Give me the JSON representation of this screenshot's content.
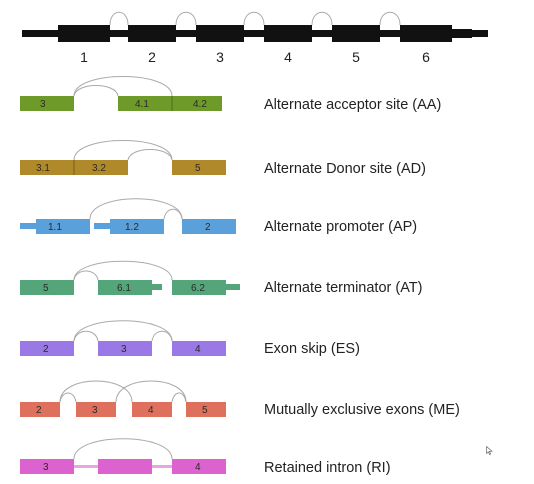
{
  "top_gene": {
    "exon_labels": [
      "1",
      "2",
      "3",
      "4",
      "5",
      "6"
    ]
  },
  "events": [
    {
      "id": "aa",
      "label": "Alternate acceptor site (AA)",
      "color": "#6e9a2a",
      "exon_labels": [
        "3",
        "4.1",
        "4.2"
      ]
    },
    {
      "id": "ad",
      "label": "Alternate Donor site (AD)",
      "color": "#b0892a",
      "exon_labels": [
        "3.1",
        "3.2",
        "5"
      ]
    },
    {
      "id": "ap",
      "label": "Alternate promoter (AP)",
      "color": "#5aa1dc",
      "exon_labels": [
        "1.1",
        "1.2",
        "2"
      ]
    },
    {
      "id": "at",
      "label": "Alternate terminator (AT)",
      "color": "#55a57a",
      "exon_labels": [
        "5",
        "6.1",
        "6.2"
      ]
    },
    {
      "id": "es",
      "label": "Exon skip (ES)",
      "color": "#9a78e6",
      "exon_labels": [
        "2",
        "3",
        "4"
      ]
    },
    {
      "id": "me",
      "label": "Mutually exclusive exons (ME)",
      "color": "#e0705e",
      "exon_labels": [
        "2",
        "3",
        "4",
        "5"
      ]
    },
    {
      "id": "ri",
      "label": "Retained intron (RI)",
      "color": "#dc62d0",
      "exon_labels": [
        "3",
        "4"
      ]
    }
  ]
}
